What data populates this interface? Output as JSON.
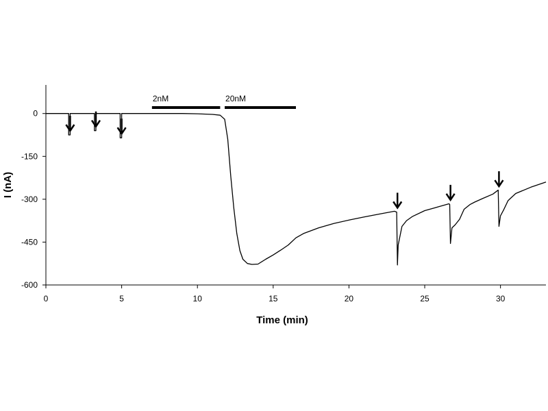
{
  "chart_data": {
    "type": "line",
    "title": "",
    "xlabel": "Time (min)",
    "ylabel": "I (nA)",
    "xlim": [
      0,
      33
    ],
    "ylim": [
      -600,
      100
    ],
    "xticks": [
      0,
      5,
      10,
      15,
      20,
      25,
      30
    ],
    "yticks": [
      0,
      -150,
      -300,
      -450,
      -600
    ],
    "grid": false,
    "legend": "none",
    "line_color": "#000000",
    "series": [
      {
        "x": [
          0,
          1.5,
          1.5,
          1.6,
          1.6,
          3.2,
          3.2,
          3.3,
          3.3,
          4.9,
          4.9,
          5.0,
          5.0,
          7,
          9,
          10,
          11,
          11.5,
          11.8,
          12.0,
          12.2,
          12.4,
          12.6,
          12.8,
          13.0,
          13.3,
          13.6,
          14.0,
          14.5,
          15.0,
          15.5,
          16.0,
          16.5,
          17.0,
          18.0,
          19.0,
          20.0,
          21.0,
          22.0,
          23.0,
          23.15,
          23.2,
          23.25,
          23.5,
          23.8,
          24.2,
          25.0,
          26.0,
          26.6,
          26.65,
          26.7,
          26.8,
          27.0,
          27.3,
          27.6,
          28.0,
          28.3,
          28.8,
          29.5,
          29.8,
          29.85,
          29.9,
          30.0,
          30.2,
          30.5,
          31.0,
          32.0,
          33.0
        ],
        "y": [
          0,
          0,
          -75,
          -75,
          0,
          0,
          -60,
          -60,
          0,
          0,
          -85,
          -85,
          0,
          0,
          0,
          -1,
          -3,
          -6,
          -20,
          -90,
          -220,
          -330,
          -420,
          -480,
          -510,
          -525,
          -528,
          -527,
          -510,
          -495,
          -478,
          -460,
          -435,
          -420,
          -400,
          -385,
          -373,
          -362,
          -352,
          -342,
          -345,
          -530,
          -460,
          -395,
          -375,
          -360,
          -340,
          -325,
          -316,
          -318,
          -455,
          -400,
          -390,
          -370,
          -335,
          -318,
          -310,
          -298,
          -282,
          -270,
          -268,
          -395,
          -358,
          -338,
          -305,
          -280,
          -258,
          -240
        ]
      }
    ],
    "annotations": {
      "arrows_at_x": [
        1.6,
        3.3,
        5.0,
        23.2,
        26.7,
        29.9
      ],
      "concentration_bars": [
        {
          "label": "2nM",
          "x_start": 7.0,
          "x_end": 11.5
        },
        {
          "label": "20nM",
          "x_start": 11.8,
          "x_end": 16.5
        }
      ]
    }
  }
}
